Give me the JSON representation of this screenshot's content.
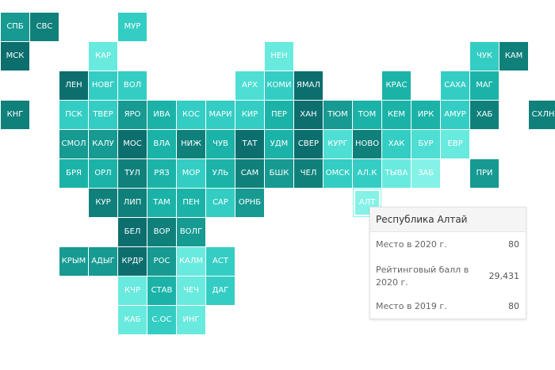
{
  "colors": {
    "dark": "#0d6e6e",
    "dark2": "#10807b",
    "mid": "#169a91",
    "mid2": "#1bb3a8",
    "light": "#34cdc3",
    "light2": "#4fded3",
    "pale": "#69eade",
    "pale2": "#85f2e7"
  },
  "regions": [
    {
      "label": "СПБ",
      "col": 0,
      "row": 0,
      "shade": "mid"
    },
    {
      "label": "СВС",
      "col": 1,
      "row": 0,
      "shade": "dark2"
    },
    {
      "label": "МУР",
      "col": 4,
      "row": 0,
      "shade": "light"
    },
    {
      "label": "МСК",
      "col": 0,
      "row": 1,
      "shade": "dark"
    },
    {
      "label": "КАР",
      "col": 3,
      "row": 1,
      "shade": "pale"
    },
    {
      "label": "НЕН",
      "col": 9,
      "row": 1,
      "shade": "pale"
    },
    {
      "label": "ЧУК",
      "col": 16,
      "row": 1,
      "shade": "light"
    },
    {
      "label": "КАМ",
      "col": 17,
      "row": 1,
      "shade": "dark2"
    },
    {
      "label": "ЛЕН",
      "col": 2,
      "row": 2,
      "shade": "dark"
    },
    {
      "label": "НОВГ",
      "col": 3,
      "row": 2,
      "shade": "light"
    },
    {
      "label": "ВОЛ",
      "col": 4,
      "row": 2,
      "shade": "light"
    },
    {
      "label": "АРХ",
      "col": 8,
      "row": 2,
      "shade": "light2"
    },
    {
      "label": "КОМИ",
      "col": 9,
      "row": 2,
      "shade": "light"
    },
    {
      "label": "ЯМАЛ",
      "col": 10,
      "row": 2,
      "shade": "dark"
    },
    {
      "label": "КРАС",
      "col": 13,
      "row": 2,
      "shade": "mid2"
    },
    {
      "label": "САХА",
      "col": 15,
      "row": 2,
      "shade": "light"
    },
    {
      "label": "МАГ",
      "col": 16,
      "row": 2,
      "shade": "mid2"
    },
    {
      "label": "КНГ",
      "col": 0,
      "row": 3,
      "shade": "dark2"
    },
    {
      "label": "ПСК",
      "col": 2,
      "row": 3,
      "shade": "light"
    },
    {
      "label": "ТВЕР",
      "col": 3,
      "row": 3,
      "shade": "light"
    },
    {
      "label": "ЯРО",
      "col": 4,
      "row": 3,
      "shade": "mid"
    },
    {
      "label": "ИВА",
      "col": 5,
      "row": 3,
      "shade": "mid2"
    },
    {
      "label": "КОС",
      "col": 6,
      "row": 3,
      "shade": "light"
    },
    {
      "label": "МАРИ",
      "col": 7,
      "row": 3,
      "shade": "light"
    },
    {
      "label": "КИР",
      "col": 8,
      "row": 3,
      "shade": "light"
    },
    {
      "label": "ПЕР",
      "col": 9,
      "row": 3,
      "shade": "mid2"
    },
    {
      "label": "ХАН",
      "col": 10,
      "row": 3,
      "shade": "dark"
    },
    {
      "label": "ТЮМ",
      "col": 11,
      "row": 3,
      "shade": "mid"
    },
    {
      "label": "ТОМ",
      "col": 12,
      "row": 3,
      "shade": "mid2"
    },
    {
      "label": "КЕМ",
      "col": 13,
      "row": 3,
      "shade": "mid2"
    },
    {
      "label": "ИРК",
      "col": 14,
      "row": 3,
      "shade": "mid2"
    },
    {
      "label": "АМУР",
      "col": 15,
      "row": 3,
      "shade": "light"
    },
    {
      "label": "ХАБ",
      "col": 16,
      "row": 3,
      "shade": "dark2"
    },
    {
      "label": "СХЛН",
      "col": 18,
      "row": 3,
      "shade": "dark2"
    },
    {
      "label": "СМОЛ",
      "col": 2,
      "row": 4,
      "shade": "mid"
    },
    {
      "label": "КАЛУ",
      "col": 3,
      "row": 4,
      "shade": "mid"
    },
    {
      "label": "МОС",
      "col": 4,
      "row": 4,
      "shade": "dark"
    },
    {
      "label": "ВЛА",
      "col": 5,
      "row": 4,
      "shade": "mid2"
    },
    {
      "label": "НИЖ",
      "col": 6,
      "row": 4,
      "shade": "dark2"
    },
    {
      "label": "ЧУВ",
      "col": 7,
      "row": 4,
      "shade": "mid2"
    },
    {
      "label": "ТАТ",
      "col": 8,
      "row": 4,
      "shade": "dark"
    },
    {
      "label": "УДМ",
      "col": 9,
      "row": 4,
      "shade": "mid2"
    },
    {
      "label": "СВЕР",
      "col": 10,
      "row": 4,
      "shade": "dark"
    },
    {
      "label": "КУРГ",
      "col": 11,
      "row": 4,
      "shade": "light2"
    },
    {
      "label": "НОВО",
      "col": 12,
      "row": 4,
      "shade": "dark2"
    },
    {
      "label": "ХАК",
      "col": 13,
      "row": 4,
      "shade": "light"
    },
    {
      "label": "БУР",
      "col": 14,
      "row": 4,
      "shade": "light2"
    },
    {
      "label": "ЕВР",
      "col": 15,
      "row": 4,
      "shade": "pale"
    },
    {
      "label": "БРЯ",
      "col": 2,
      "row": 5,
      "shade": "mid2"
    },
    {
      "label": "ОРЛ",
      "col": 3,
      "row": 5,
      "shade": "mid2"
    },
    {
      "label": "ТУЛ",
      "col": 4,
      "row": 5,
      "shade": "dark2"
    },
    {
      "label": "РЯЗ",
      "col": 5,
      "row": 5,
      "shade": "mid2"
    },
    {
      "label": "МОР",
      "col": 6,
      "row": 5,
      "shade": "light"
    },
    {
      "label": "УЛЬ",
      "col": 7,
      "row": 5,
      "shade": "mid2"
    },
    {
      "label": "САМ",
      "col": 8,
      "row": 5,
      "shade": "dark2"
    },
    {
      "label": "БШК",
      "col": 9,
      "row": 5,
      "shade": "mid"
    },
    {
      "label": "ЧЕЛ",
      "col": 10,
      "row": 5,
      "shade": "dark2"
    },
    {
      "label": "ОМСК",
      "col": 11,
      "row": 5,
      "shade": "light"
    },
    {
      "label": "АЛ.К",
      "col": 12,
      "row": 5,
      "shade": "light"
    },
    {
      "label": "ТЫВА",
      "col": 13,
      "row": 5,
      "shade": "pale"
    },
    {
      "label": "ЗАБ",
      "col": 14,
      "row": 5,
      "shade": "pale2"
    },
    {
      "label": "ПРИ",
      "col": 16,
      "row": 5,
      "shade": "mid"
    },
    {
      "label": "КУР",
      "col": 3,
      "row": 6,
      "shade": "dark2"
    },
    {
      "label": "ЛИП",
      "col": 4,
      "row": 6,
      "shade": "dark2"
    },
    {
      "label": "ТАМ",
      "col": 5,
      "row": 6,
      "shade": "mid2"
    },
    {
      "label": "ПЕН",
      "col": 6,
      "row": 6,
      "shade": "mid2"
    },
    {
      "label": "САР",
      "col": 7,
      "row": 6,
      "shade": "light"
    },
    {
      "label": "ОРНБ",
      "col": 8,
      "row": 6,
      "shade": "mid"
    },
    {
      "label": "АЛТ",
      "col": 12,
      "row": 6,
      "shade": "pale2",
      "selected": true
    },
    {
      "label": "БЕЛ",
      "col": 4,
      "row": 7,
      "shade": "dark"
    },
    {
      "label": "ВОР",
      "col": 5,
      "row": 7,
      "shade": "dark2"
    },
    {
      "label": "ВОЛГ",
      "col": 6,
      "row": 7,
      "shade": "mid"
    },
    {
      "label": "КРЫМ",
      "col": 2,
      "row": 8,
      "shade": "mid"
    },
    {
      "label": "АДЫГ",
      "col": 3,
      "row": 8,
      "shade": "mid"
    },
    {
      "label": "КРДР",
      "col": 4,
      "row": 8,
      "shade": "dark"
    },
    {
      "label": "РОС",
      "col": 5,
      "row": 8,
      "shade": "mid"
    },
    {
      "label": "КАЛМ",
      "col": 6,
      "row": 8,
      "shade": "pale"
    },
    {
      "label": "АСТ",
      "col": 7,
      "row": 8,
      "shade": "light"
    },
    {
      "label": "КЧР",
      "col": 4,
      "row": 9,
      "shade": "pale"
    },
    {
      "label": "СТАВ",
      "col": 5,
      "row": 9,
      "shade": "mid2"
    },
    {
      "label": "ЧЕЧ",
      "col": 6,
      "row": 9,
      "shade": "pale"
    },
    {
      "label": "ДАГ",
      "col": 7,
      "row": 9,
      "shade": "light"
    },
    {
      "label": "КАБ",
      "col": 4,
      "row": 10,
      "shade": "pale"
    },
    {
      "label": "С.ОС",
      "col": 5,
      "row": 10,
      "shade": "light"
    },
    {
      "label": "ИНГ",
      "col": 6,
      "row": 10,
      "shade": "pale"
    }
  ],
  "tooltip": {
    "title": "Республика Алтай",
    "rows": [
      {
        "label": "Место в 2020 г.",
        "value": "80"
      },
      {
        "label": "Рейтинговый балл в 2020 г.",
        "value": "29,431"
      },
      {
        "label": "Место в 2019 г.",
        "value": "80"
      }
    ]
  }
}
